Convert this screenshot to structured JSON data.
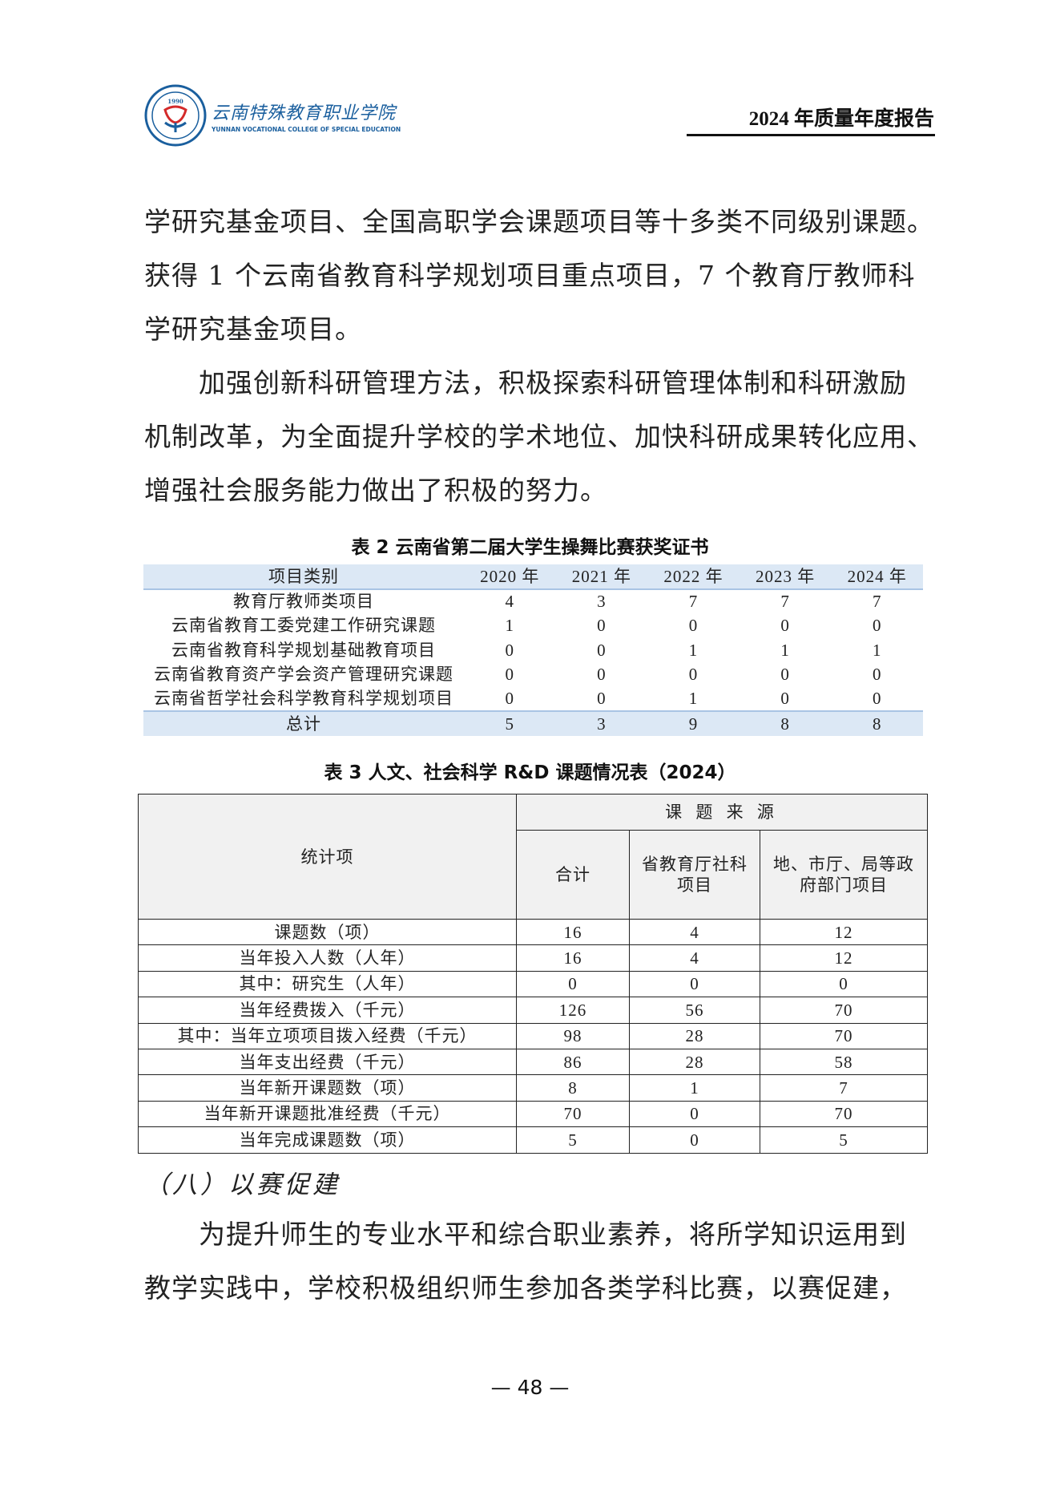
{
  "header": {
    "logo": {
      "year": "1990",
      "name_cn": "云南特殊教育职业学院",
      "name_en": "YUNNAN VOCATIONAL COLLEGE OF SPECIAL EDUCATION",
      "color": "#1a5f9e"
    },
    "report_title": "2024 年质量年度报告"
  },
  "paragraphs_top": [
    "学研究基金项目、全国高职学会课题项目等十多类不同级别课题。",
    "获得 1 个云南省教育科学规划项目重点项目，7 个教育厅教师科",
    "学研究基金项目。",
    "　　加强创新科研管理方法，积极探索科研管理体制和科研激励",
    "机制改革，为全面提升学校的学术地位、加快科研成果转化应用、",
    "增强社会服务能力做出了积极的努力。"
  ],
  "table2": {
    "caption": "表 2  云南省第二届大学生操舞比赛获奖证书",
    "headers": [
      "项目类别",
      "2020 年",
      "2021 年",
      "2022 年",
      "2023 年",
      "2024 年"
    ],
    "rows": [
      [
        "教育厅教师类项目",
        "4",
        "3",
        "7",
        "7",
        "7"
      ],
      [
        "云南省教育工委党建工作研究课题",
        "1",
        "0",
        "0",
        "0",
        "0"
      ],
      [
        "云南省教育科学规划基础教育项目",
        "0",
        "0",
        "1",
        "1",
        "1"
      ],
      [
        "云南省教育资产学会资产管理研究课题",
        "0",
        "0",
        "0",
        "0",
        "0"
      ],
      [
        "云南省哲学社会科学教育科学规划项目",
        "0",
        "0",
        "1",
        "0",
        "0"
      ]
    ],
    "total": [
      "总计",
      "5",
      "3",
      "9",
      "8",
      "8"
    ],
    "accent_bg": "#dce8f5"
  },
  "table3": {
    "caption": "表 3  人文、社会科学 R&D 课题情况表（2024）",
    "header_stat": "统计项",
    "header_source": "课 题 来 源",
    "sub_headers": [
      "合计",
      "省教育厅社科项目",
      "地、市厅、局等政府部门项目"
    ],
    "rows": [
      [
        "课题数（项）",
        "16",
        "4",
        "12"
      ],
      [
        "当年投入人数（人年）",
        "16",
        "4",
        "12"
      ],
      [
        "其中：研究生（人年）",
        "0",
        "0",
        "0"
      ],
      [
        "当年经费拨入（千元）",
        "126",
        "56",
        "70"
      ],
      [
        "其中：当年立项项目拨入经费（千元）",
        "98",
        "28",
        "70"
      ],
      [
        "当年支出经费（千元）",
        "86",
        "28",
        "58"
      ],
      [
        "当年新开课题数（项）",
        "8",
        "1",
        "7"
      ],
      [
        "当年新开课题批准经费（千元）",
        "70",
        "0",
        "70"
      ],
      [
        "当年完成课题数（项）",
        "5",
        "0",
        "5"
      ]
    ]
  },
  "section_heading": "（八）以赛促建",
  "paragraphs_bottom": [
    "　　为提升师生的专业水平和综合职业素养，将所学知识运用到",
    "教学实践中，学校积极组织师生参加各类学科比赛，以赛促建，"
  ],
  "page_number": "— 48 —"
}
